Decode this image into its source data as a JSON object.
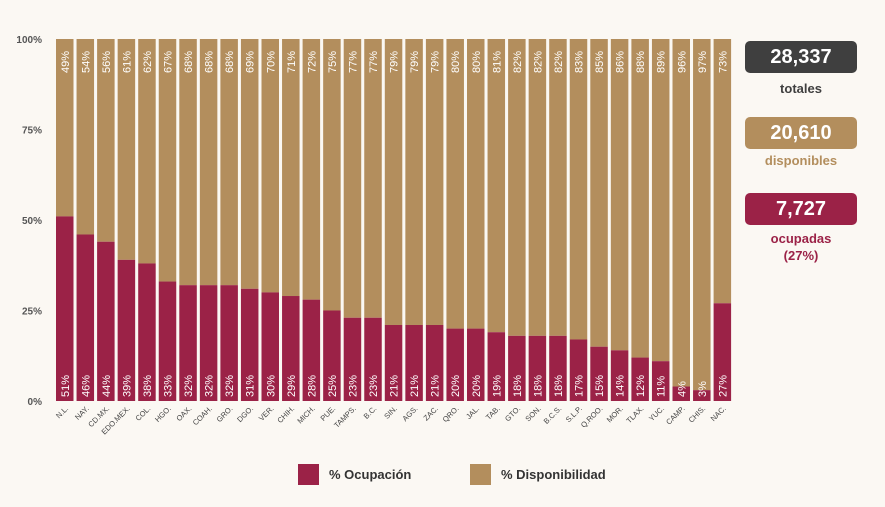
{
  "colors": {
    "ocupacion": "#9b2247",
    "disponibilidad": "#b38e5d",
    "totales": "#3f3f3f"
  },
  "chart_data": {
    "type": "bar",
    "stacked": true,
    "categories": [
      "N.L.",
      "NAY.",
      "CD.MX.",
      "EDO.MEX.",
      "COL.",
      "HGO.",
      "OAX.",
      "COAH.",
      "GRO.",
      "DGO.",
      "VER.",
      "CHIH.",
      "MICH.",
      "PUE.",
      "TAMPS.",
      "B.C.",
      "SIN.",
      "AGS.",
      "ZAC.",
      "QRO.",
      "JAL.",
      "TAB.",
      "GTO.",
      "SON.",
      "B.C.S.",
      "S.L.P.",
      "Q.ROO.",
      "MOR.",
      "TLAX.",
      "YUC.",
      "CAMP.",
      "CHIS.",
      "NAC."
    ],
    "series": [
      {
        "name": "% Ocupación",
        "values": [
          51,
          46,
          44,
          39,
          38,
          33,
          32,
          32,
          32,
          31,
          30,
          29,
          28,
          25,
          23,
          23,
          21,
          21,
          21,
          20,
          20,
          19,
          18,
          18,
          18,
          17,
          15,
          14,
          12,
          11,
          4,
          3,
          27
        ]
      },
      {
        "name": "% Disponibilidad",
        "values": [
          49,
          54,
          56,
          61,
          62,
          67,
          68,
          68,
          68,
          69,
          70,
          71,
          72,
          75,
          77,
          77,
          79,
          79,
          79,
          80,
          80,
          81,
          82,
          82,
          82,
          83,
          85,
          86,
          88,
          89,
          96,
          97,
          73
        ]
      }
    ],
    "yticks": [
      "0%",
      "25%",
      "50%",
      "75%",
      "100%"
    ],
    "ylim": [
      0,
      100
    ],
    "legend_position": "bottom",
    "grid": false
  },
  "legend": {
    "ocupacion": "% Ocupación",
    "disponibilidad": "% Disponibilidad"
  },
  "kpis": {
    "totales": {
      "value": "28,337",
      "caption": "totales"
    },
    "disponibles": {
      "value": "20,610",
      "caption": "disponibles"
    },
    "ocupadas": {
      "value": "7,727",
      "caption": "ocupadas",
      "sub": "(27%)"
    }
  }
}
